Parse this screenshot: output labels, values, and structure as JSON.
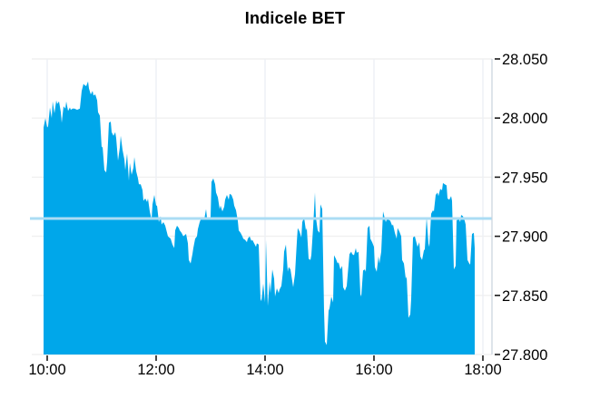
{
  "title": "Indicele BET",
  "colors": {
    "area_fill": "#00a7ea",
    "reference_line": "#abdcf4",
    "h_gridline": "#f0f0f0",
    "v_gridline": "#edf0f4",
    "axis_line": "#c9d2dd",
    "tick": "#1a1a1a",
    "label_text": "#000000"
  },
  "chart_data": {
    "type": "area",
    "title": "Indicele BET",
    "legend": null,
    "grid": true,
    "x_axis": {
      "tick_labels": [
        "10:00",
        "12:00",
        "14:00",
        "16:00",
        "18:00"
      ],
      "tick_minutes": [
        0,
        120,
        240,
        360,
        480
      ],
      "unit": "minutes_after_10:00",
      "session_start": "09:56",
      "session_end": "17:51"
    },
    "y_axis": {
      "side": "right",
      "min": 27.8,
      "max": 28.05,
      "tick_values": [
        28.05,
        28.0,
        27.95,
        27.9,
        27.85,
        27.8
      ],
      "tick_labels": [
        "28.050",
        "28.000",
        "27.950",
        "27.900",
        "27.850",
        "27.800"
      ]
    },
    "reference_line": {
      "value": 27.915
    },
    "series": [
      {
        "name": "BET",
        "points": [
          [
            -4,
            27.992
          ],
          [
            -2,
            28.0
          ],
          [
            0,
            27.992
          ],
          [
            1,
            27.993
          ],
          [
            3,
            28.009
          ],
          [
            5,
            28.0
          ],
          [
            6,
            28.014
          ],
          [
            8,
            28.004
          ],
          [
            10,
            28.015
          ],
          [
            11,
            28.012
          ],
          [
            13,
            28.014
          ],
          [
            15,
            28.005
          ],
          [
            16,
            27.996
          ],
          [
            18,
            28.01
          ],
          [
            20,
            28.008
          ],
          [
            21,
            28.014
          ],
          [
            23,
            28.006
          ],
          [
            25,
            28.009
          ],
          [
            26,
            28.007
          ],
          [
            28,
            28.008
          ],
          [
            30,
            28.008
          ],
          [
            33,
            28.007
          ],
          [
            36,
            28.008
          ],
          [
            38,
            28.023
          ],
          [
            40,
            28.029
          ],
          [
            41,
            28.028
          ],
          [
            43,
            28.027
          ],
          [
            45,
            28.031
          ],
          [
            46,
            28.025
          ],
          [
            48,
            28.02
          ],
          [
            50,
            28.023
          ],
          [
            51,
            28.019
          ],
          [
            53,
            28.02
          ],
          [
            55,
            28.015
          ],
          [
            56,
            28.005
          ],
          [
            58,
            28.002
          ],
          [
            60,
            27.975
          ],
          [
            61,
            27.976
          ],
          [
            63,
            27.956
          ],
          [
            65,
            27.954
          ],
          [
            66,
            27.963
          ],
          [
            68,
            27.996
          ],
          [
            70,
            27.997
          ],
          [
            71,
            27.988
          ],
          [
            73,
            27.985
          ],
          [
            75,
            27.988
          ],
          [
            76,
            27.983
          ],
          [
            78,
            27.964
          ],
          [
            80,
            27.975
          ],
          [
            81,
            27.985
          ],
          [
            83,
            27.973
          ],
          [
            85,
            27.965
          ],
          [
            86,
            27.956
          ],
          [
            88,
            27.97
          ],
          [
            90,
            27.947
          ],
          [
            91,
            27.962
          ],
          [
            93,
            27.952
          ],
          [
            95,
            27.958
          ],
          [
            96,
            27.967
          ],
          [
            98,
            27.955
          ],
          [
            100,
            27.949
          ],
          [
            101,
            27.944
          ],
          [
            103,
            27.944
          ],
          [
            105,
            27.939
          ],
          [
            106,
            27.93
          ],
          [
            108,
            27.932
          ],
          [
            110,
            27.929
          ],
          [
            111,
            27.932
          ],
          [
            113,
            27.921
          ],
          [
            115,
            27.914
          ],
          [
            116,
            27.927
          ],
          [
            118,
            27.935
          ],
          [
            120,
            27.926
          ],
          [
            121,
            27.926
          ],
          [
            123,
            27.912
          ],
          [
            125,
            27.917
          ],
          [
            126,
            27.91
          ],
          [
            128,
            27.912
          ],
          [
            130,
            27.909
          ],
          [
            133,
            27.9
          ],
          [
            136,
            27.898
          ],
          [
            138,
            27.893
          ],
          [
            140,
            27.89
          ],
          [
            141,
            27.905
          ],
          [
            143,
            27.909
          ],
          [
            145,
            27.907
          ],
          [
            146,
            27.905
          ],
          [
            148,
            27.903
          ],
          [
            150,
            27.9
          ],
          [
            153,
            27.902
          ],
          [
            155,
            27.894
          ],
          [
            156,
            27.88
          ],
          [
            158,
            27.877
          ],
          [
            160,
            27.885
          ],
          [
            161,
            27.89
          ],
          [
            163,
            27.898
          ],
          [
            165,
            27.9
          ],
          [
            166,
            27.906
          ],
          [
            168,
            27.912
          ],
          [
            170,
            27.916
          ],
          [
            171,
            27.916
          ],
          [
            173,
            27.914
          ],
          [
            175,
            27.923
          ],
          [
            176,
            27.916
          ],
          [
            178,
            27.914
          ],
          [
            180,
            27.916
          ],
          [
            181,
            27.946
          ],
          [
            183,
            27.949
          ],
          [
            185,
            27.944
          ],
          [
            186,
            27.937
          ],
          [
            188,
            27.933
          ],
          [
            190,
            27.923
          ],
          [
            191,
            27.926
          ],
          [
            193,
            27.921
          ],
          [
            195,
            27.925
          ],
          [
            196,
            27.931
          ],
          [
            198,
            27.935
          ],
          [
            200,
            27.931
          ],
          [
            201,
            27.936
          ],
          [
            203,
            27.935
          ],
          [
            205,
            27.931
          ],
          [
            206,
            27.926
          ],
          [
            208,
            27.922
          ],
          [
            210,
            27.913
          ],
          [
            211,
            27.905
          ],
          [
            213,
            27.903
          ],
          [
            215,
            27.9
          ],
          [
            216,
            27.898
          ],
          [
            218,
            27.897
          ],
          [
            220,
            27.895
          ],
          [
            221,
            27.898
          ],
          [
            223,
            27.9
          ],
          [
            225,
            27.896
          ],
          [
            226,
            27.897
          ],
          [
            228,
            27.894
          ],
          [
            230,
            27.891
          ],
          [
            231,
            27.894
          ],
          [
            233,
            27.893
          ],
          [
            235,
            27.847
          ],
          [
            236,
            27.845
          ],
          [
            238,
            27.86
          ],
          [
            240,
            27.844
          ],
          [
            241,
            27.897
          ],
          [
            243,
            27.841
          ],
          [
            245,
            27.862
          ],
          [
            246,
            27.852
          ],
          [
            248,
            27.872
          ],
          [
            250,
            27.864
          ],
          [
            251,
            27.849
          ],
          [
            253,
            27.856
          ],
          [
            255,
            27.852
          ],
          [
            256,
            27.855
          ],
          [
            258,
            27.858
          ],
          [
            260,
            27.872
          ],
          [
            261,
            27.887
          ],
          [
            263,
            27.893
          ],
          [
            265,
            27.87
          ],
          [
            266,
            27.874
          ],
          [
            268,
            27.872
          ],
          [
            270,
            27.862
          ],
          [
            271,
            27.857
          ],
          [
            273,
            27.868
          ],
          [
            275,
            27.895
          ],
          [
            276,
            27.907
          ],
          [
            278,
            27.904
          ],
          [
            280,
            27.899
          ],
          [
            281,
            27.912
          ],
          [
            283,
            27.916
          ],
          [
            285,
            27.905
          ],
          [
            286,
            27.907
          ],
          [
            288,
            27.881
          ],
          [
            290,
            27.88
          ],
          [
            291,
            27.884
          ],
          [
            293,
            27.908
          ],
          [
            295,
            27.937
          ],
          [
            296,
            27.916
          ],
          [
            298,
            27.905
          ],
          [
            300,
            27.903
          ],
          [
            301,
            27.927
          ],
          [
            303,
            27.923
          ],
          [
            305,
            27.837
          ],
          [
            306,
            27.811
          ],
          [
            308,
            27.808
          ],
          [
            310,
            27.837
          ],
          [
            311,
            27.839
          ],
          [
            313,
            27.849
          ],
          [
            315,
            27.844
          ],
          [
            316,
            27.884
          ],
          [
            318,
            27.881
          ],
          [
            320,
            27.877
          ],
          [
            321,
            27.878
          ],
          [
            323,
            27.872
          ],
          [
            325,
            27.875
          ],
          [
            326,
            27.857
          ],
          [
            328,
            27.854
          ],
          [
            330,
            27.858
          ],
          [
            331,
            27.867
          ],
          [
            333,
            27.885
          ],
          [
            335,
            27.887
          ],
          [
            336,
            27.885
          ],
          [
            338,
            27.884
          ],
          [
            340,
            27.89
          ],
          [
            341,
            27.886
          ],
          [
            343,
            27.887
          ],
          [
            345,
            27.851
          ],
          [
            346,
            27.849
          ],
          [
            348,
            27.871
          ],
          [
            350,
            27.872
          ],
          [
            351,
            27.87
          ],
          [
            353,
            27.907
          ],
          [
            355,
            27.909
          ],
          [
            356,
            27.898
          ],
          [
            358,
            27.895
          ],
          [
            360,
            27.891
          ],
          [
            361,
            27.874
          ],
          [
            363,
            27.87
          ],
          [
            365,
            27.883
          ],
          [
            366,
            27.877
          ],
          [
            368,
            27.887
          ],
          [
            370,
            27.921
          ],
          [
            371,
            27.918
          ],
          [
            373,
            27.912
          ],
          [
            375,
            27.916
          ],
          [
            376,
            27.914
          ],
          [
            378,
            27.913
          ],
          [
            380,
            27.909
          ],
          [
            381,
            27.91
          ],
          [
            383,
            27.903
          ],
          [
            385,
            27.898
          ],
          [
            386,
            27.907
          ],
          [
            388,
            27.904
          ],
          [
            390,
            27.9
          ],
          [
            391,
            27.88
          ],
          [
            393,
            27.877
          ],
          [
            395,
            27.864
          ],
          [
            396,
            27.866
          ],
          [
            398,
            27.831
          ],
          [
            400,
            27.834
          ],
          [
            401,
            27.847
          ],
          [
            403,
            27.899
          ],
          [
            405,
            27.9
          ],
          [
            406,
            27.897
          ],
          [
            408,
            27.891
          ],
          [
            410,
            27.895
          ],
          [
            411,
            27.883
          ],
          [
            413,
            27.88
          ],
          [
            415,
            27.888
          ],
          [
            416,
            27.889
          ],
          [
            418,
            27.916
          ],
          [
            420,
            27.894
          ],
          [
            421,
            27.891
          ],
          [
            423,
            27.919
          ],
          [
            425,
            27.922
          ],
          [
            426,
            27.921
          ],
          [
            428,
            27.935
          ],
          [
            430,
            27.937
          ],
          [
            431,
            27.934
          ],
          [
            433,
            27.94
          ],
          [
            435,
            27.939
          ],
          [
            436,
            27.945
          ],
          [
            438,
            27.944
          ],
          [
            440,
            27.943
          ],
          [
            441,
            27.932
          ],
          [
            443,
            27.931
          ],
          [
            445,
            27.934
          ],
          [
            446,
            27.93
          ],
          [
            448,
            27.872
          ],
          [
            450,
            27.875
          ],
          [
            451,
            27.913
          ],
          [
            453,
            27.916
          ],
          [
            455,
            27.912
          ],
          [
            456,
            27.918
          ],
          [
            458,
            27.917
          ],
          [
            460,
            27.913
          ],
          [
            461,
            27.91
          ],
          [
            463,
            27.88
          ],
          [
            465,
            27.877
          ],
          [
            466,
            27.876
          ],
          [
            468,
            27.902
          ],
          [
            470,
            27.903
          ],
          [
            471,
            27.89
          ]
        ]
      }
    ]
  }
}
